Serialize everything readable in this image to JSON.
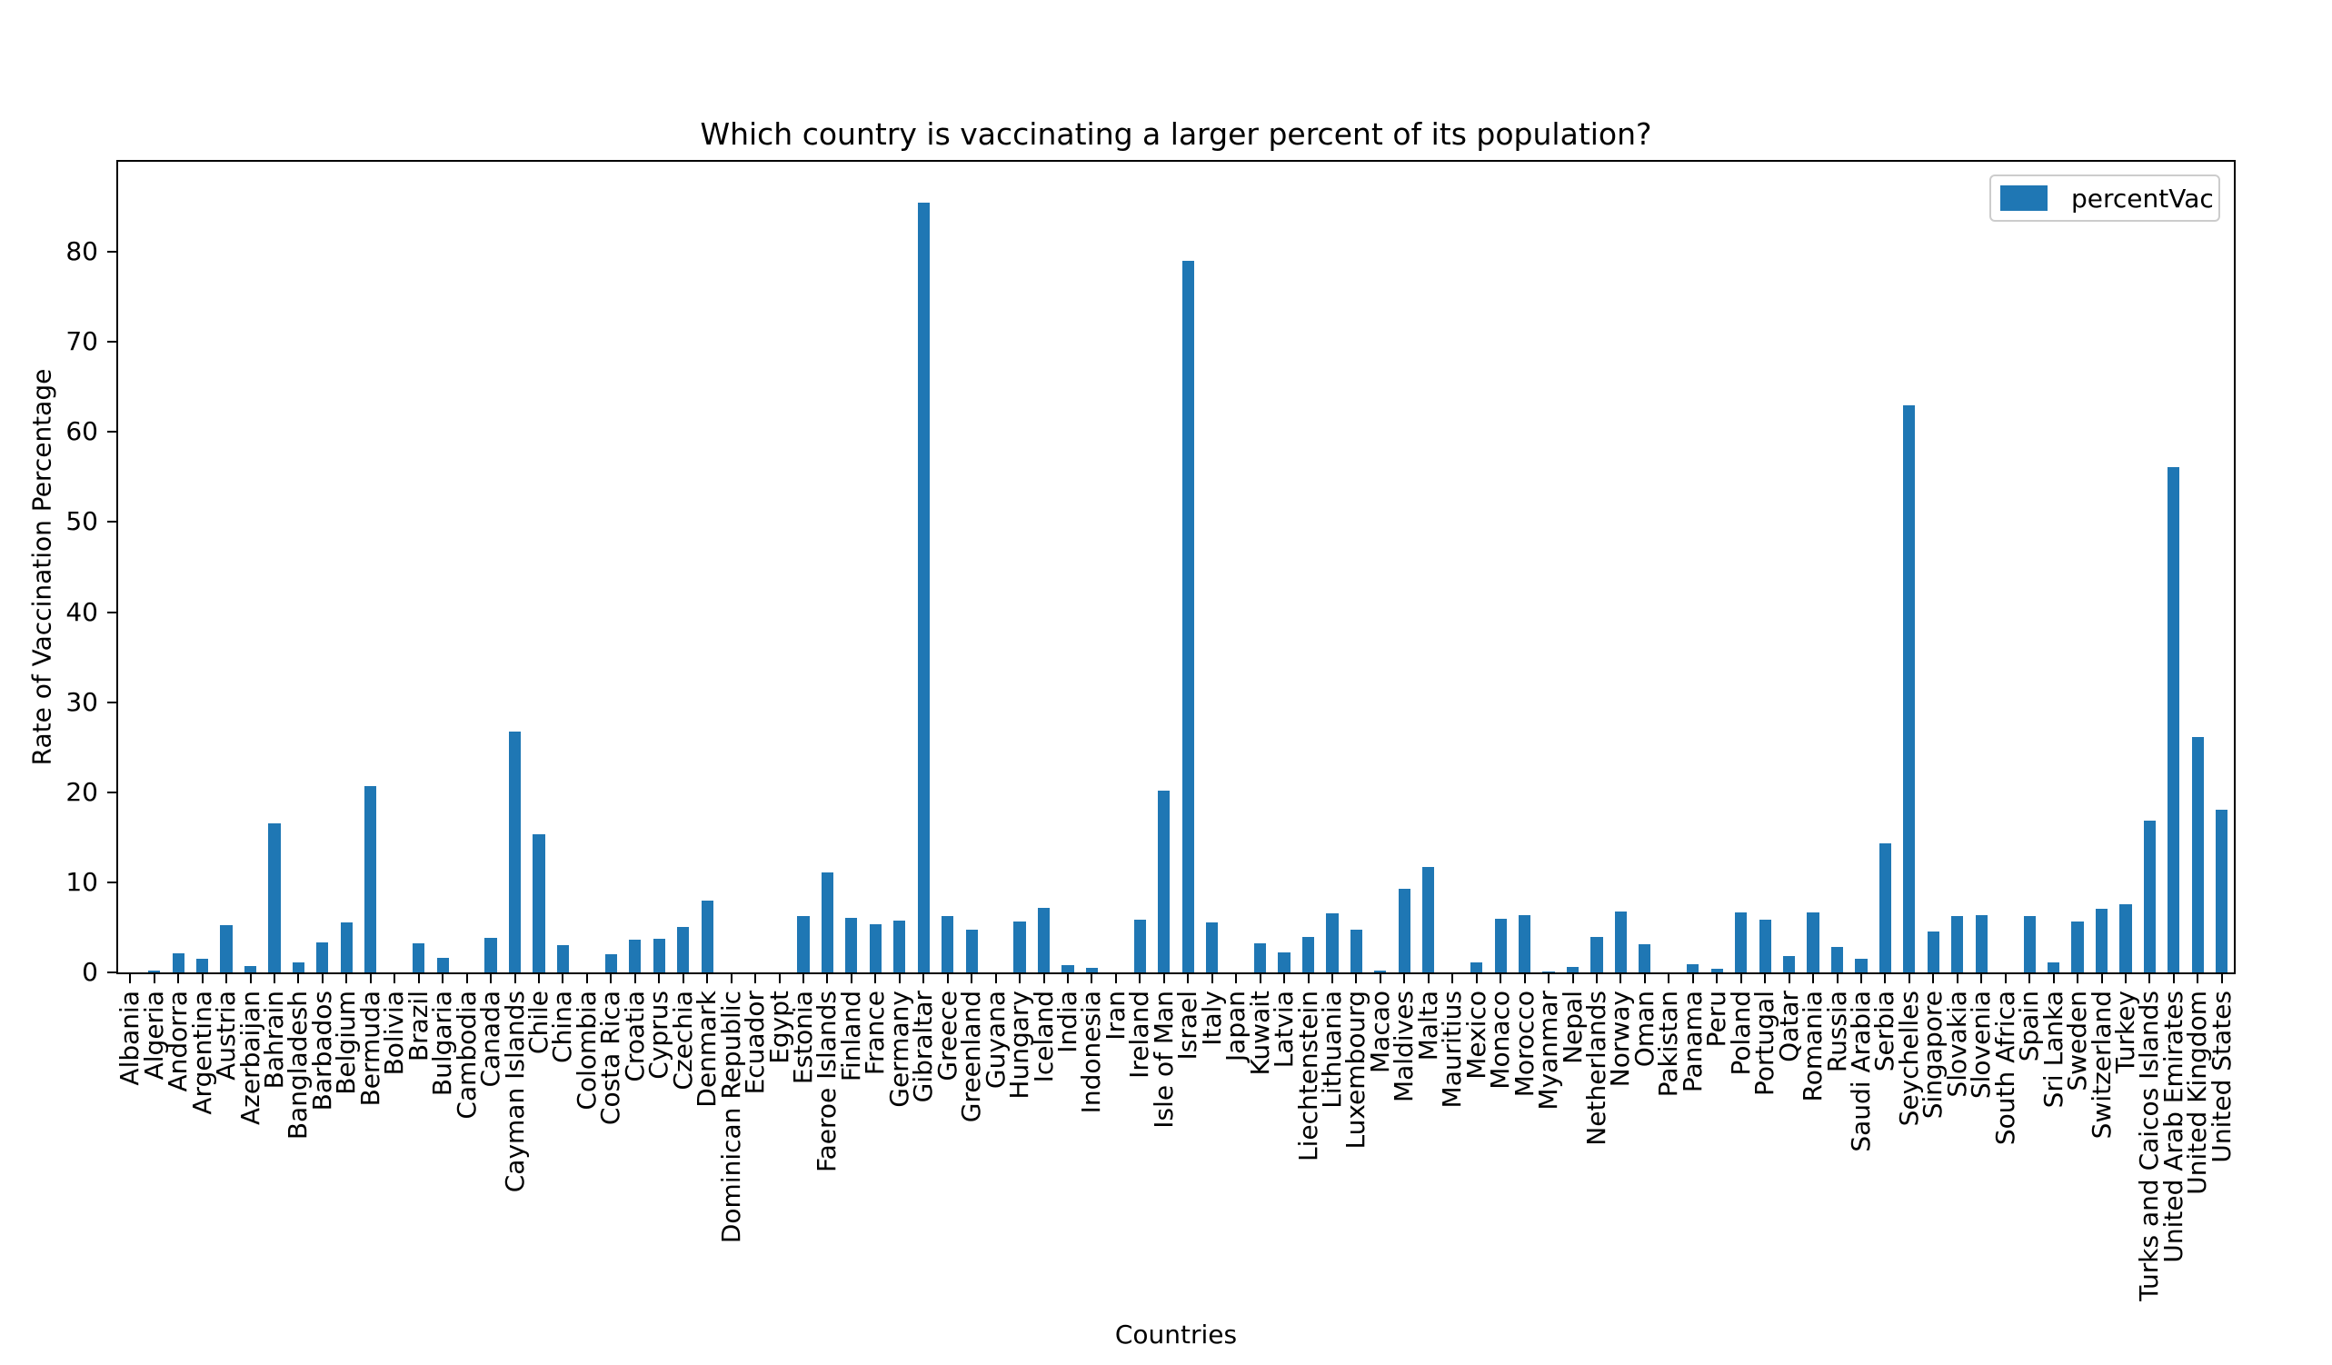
{
  "figure": {
    "title": "Which country is vaccinating a larger percent of its population?",
    "legend": {
      "label": "percentVac",
      "swatch_color": "#1f77b4"
    }
  },
  "chart_data": {
    "type": "bar",
    "title": "Which country is vaccinating a larger percent of its population?",
    "xlabel": "Countries",
    "ylabel": "Rate of Vaccination Percentage",
    "series_name": "percentVac",
    "bar_color": "#1f77b4",
    "ylim": [
      0,
      90
    ],
    "y_ticks": [
      0,
      10,
      20,
      30,
      40,
      50,
      60,
      70,
      80
    ],
    "grid": false,
    "legend_position": "upper right",
    "categories": [
      "Albania",
      "Algeria",
      "Andorra",
      "Argentina",
      "Austria",
      "Azerbaijan",
      "Bahrain",
      "Bangladesh",
      "Barbados",
      "Belgium",
      "Bermuda",
      "Bolivia",
      "Brazil",
      "Bulgaria",
      "Cambodia",
      "Canada",
      "Cayman Islands",
      "Chile",
      "China",
      "Colombia",
      "Costa Rica",
      "Croatia",
      "Cyprus",
      "Czechia",
      "Denmark",
      "Dominican Republic",
      "Ecuador",
      "Egypt",
      "Estonia",
      "Faeroe Islands",
      "Finland",
      "France",
      "Germany",
      "Gibraltar",
      "Greece",
      "Greenland",
      "Guyana",
      "Hungary",
      "Iceland",
      "India",
      "Indonesia",
      "Iran",
      "Ireland",
      "Isle of Man",
      "Israel",
      "Italy",
      "Japan",
      "Kuwait",
      "Latvia",
      "Liechtenstein",
      "Lithuania",
      "Luxembourg",
      "Macao",
      "Maldives",
      "Malta",
      "Mauritius",
      "Mexico",
      "Monaco",
      "Morocco",
      "Myanmar",
      "Nepal",
      "Netherlands",
      "Norway",
      "Oman",
      "Pakistan",
      "Panama",
      "Peru",
      "Poland",
      "Portugal",
      "Qatar",
      "Romania",
      "Russia",
      "Saudi Arabia",
      "Serbia",
      "Seychelles",
      "Singapore",
      "Slovakia",
      "Slovenia",
      "South Africa",
      "Spain",
      "Sri Lanka",
      "Sweden",
      "Switzerland",
      "Turkey",
      "Turks and Caicos Islands",
      "United Arab Emirates",
      "United Kingdom",
      "United States"
    ],
    "values": [
      0,
      0.2,
      2.1,
      1.5,
      5.2,
      0.7,
      16.5,
      1.1,
      3.3,
      5.5,
      20.7,
      0,
      3.2,
      1.6,
      0,
      3.8,
      26.7,
      15.3,
      3.0,
      0,
      2.0,
      3.6,
      3.7,
      5.0,
      8.0,
      0,
      0,
      0,
      6.3,
      11.1,
      6.1,
      5.3,
      5.8,
      85.5,
      6.3,
      4.7,
      0,
      5.7,
      7.2,
      0.8,
      0.5,
      0,
      5.9,
      20.2,
      79.0,
      5.5,
      0,
      3.2,
      2.2,
      3.9,
      6.6,
      4.7,
      0.2,
      9.3,
      11.7,
      0,
      1.1,
      6.0,
      6.4,
      0.1,
      0.6,
      3.9,
      6.8,
      3.1,
      0,
      0.9,
      0.4,
      6.7,
      5.9,
      1.8,
      6.7,
      2.8,
      1.5,
      14.3,
      63.0,
      4.5,
      6.3,
      6.4,
      0,
      6.3,
      1.1,
      5.7,
      7.1,
      7.6,
      16.8,
      56.1,
      26.1,
      18.1
    ]
  }
}
